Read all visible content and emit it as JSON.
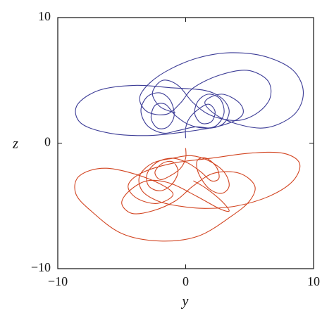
{
  "chart_data": {
    "type": "line",
    "xlabel": "y",
    "ylabel": "z",
    "xlim": [
      -10,
      10
    ],
    "ylim": [
      -10,
      10
    ],
    "xticks": [
      {
        "value": -10,
        "label": "−10"
      },
      0,
      10
    ],
    "yticks": [
      {
        "value": -10,
        "label": "−10"
      },
      0,
      10
    ],
    "series": [
      {
        "color": "#3b3b96",
        "x": [
          0,
          0,
          0.3,
          1.0,
          1.8,
          2.3,
          2.0,
          1.2,
          0.7,
          1.0,
          1.8,
          2.7,
          3.0,
          2.4,
          1.4,
          0.2,
          -0.8,
          -1.6,
          -2.4,
          -2.7,
          -2.2,
          -1.4,
          -0.9,
          -1.2,
          -2.0,
          -3.0,
          -3.5,
          -3.0,
          -1.8,
          -0.6,
          0.8,
          2.0,
          3.0,
          3.4,
          2.8,
          1.5,
          -1.0,
          -4.0,
          -6.8,
          -8.5,
          -8.2,
          -6.0,
          -3.0,
          0.0,
          2.8,
          4.4,
          4.2,
          2.8,
          1.5,
          3.0,
          6.0,
          8.4,
          9.2,
          8.4,
          6.2,
          3.5,
          1.0,
          -1.2,
          -2.8,
          -3.6,
          -3.0,
          -1.5,
          -0.4,
          0.6,
          2.6,
          4.8,
          6.4,
          6.6,
          5.6,
          4.0,
          2.0,
          0.6,
          -0.6,
          -1.8,
          -2.6,
          -2.0,
          -0.8
        ],
        "values": [
          0.4,
          1.2,
          2.0,
          2.7,
          3.1,
          2.5,
          1.7,
          1.6,
          2.4,
          3.4,
          3.9,
          3.5,
          2.4,
          1.4,
          1.2,
          1.5,
          2.2,
          3.1,
          3.0,
          2.0,
          1.2,
          1.3,
          2.2,
          3.4,
          4.0,
          3.7,
          2.6,
          1.4,
          0.8,
          1.0,
          1.3,
          1.2,
          1.6,
          2.6,
          3.6,
          4.2,
          4.4,
          4.6,
          4.2,
          3.0,
          1.6,
          0.8,
          0.6,
          0.9,
          1.4,
          2.2,
          3.2,
          3.9,
          3.2,
          1.9,
          1.2,
          2.2,
          4.0,
          5.8,
          6.9,
          7.2,
          6.8,
          5.9,
          4.8,
          3.6,
          2.5,
          2.3,
          3.2,
          4.4,
          5.4,
          5.8,
          5.0,
          3.6,
          2.4,
          1.8,
          2.2,
          3.2,
          4.6,
          5.0,
          4.0,
          2.9,
          2.4
        ]
      },
      {
        "color": "#d2431f",
        "x": [
          0,
          0,
          -0.4,
          -1.2,
          -2.0,
          -2.4,
          -1.8,
          -1.0,
          -0.6,
          -1.1,
          -2.0,
          -2.9,
          -3.0,
          -2.2,
          -1.0,
          0.2,
          1.2,
          2.0,
          2.6,
          2.4,
          1.6,
          0.9,
          1.0,
          1.8,
          2.8,
          3.4,
          3.0,
          1.8,
          0.4,
          -1.0,
          -2.6,
          -3.6,
          -3.4,
          -2.2,
          -0.6,
          1.5,
          4.0,
          6.6,
          8.4,
          8.9,
          7.6,
          5.0,
          2.0,
          -1.0,
          -3.5,
          -4.5,
          -3.8,
          -2.2,
          -1.0,
          -3.0,
          -6.2,
          -8.3,
          -8.6,
          -7.4,
          -5.0,
          -2.0,
          1.0,
          3.6,
          5.0,
          5.4,
          4.2,
          2.2,
          0.6,
          -0.8,
          -2.6,
          -4.2,
          -5.0,
          -4.4,
          -3.0,
          -1.2,
          0.8,
          2.6,
          3.4,
          2.8,
          1.6,
          0.6
        ],
        "values": [
          -0.4,
          -1.2,
          -2.0,
          -2.6,
          -2.9,
          -2.3,
          -1.6,
          -1.5,
          -2.3,
          -3.3,
          -3.8,
          -3.4,
          -2.4,
          -1.5,
          -1.2,
          -1.6,
          -2.3,
          -3.0,
          -2.8,
          -1.9,
          -1.2,
          -1.4,
          -2.4,
          -3.6,
          -4.0,
          -3.4,
          -2.3,
          -1.4,
          -1.0,
          -1.2,
          -1.6,
          -2.6,
          -3.8,
          -4.6,
          -5.0,
          -5.2,
          -5.0,
          -4.2,
          -3.0,
          -1.6,
          -0.8,
          -0.8,
          -1.2,
          -1.6,
          -2.4,
          -3.4,
          -4.4,
          -4.8,
          -4.0,
          -2.8,
          -2.0,
          -2.6,
          -4.0,
          -5.4,
          -7.2,
          -7.8,
          -7.4,
          -5.8,
          -4.6,
          -3.4,
          -2.4,
          -2.4,
          -3.4,
          -4.6,
          -5.4,
          -5.6,
          -4.8,
          -3.8,
          -3.0,
          -3.2,
          -4.2,
          -5.2,
          -5.4,
          -4.6,
          -3.6,
          -3.0
        ]
      }
    ]
  }
}
